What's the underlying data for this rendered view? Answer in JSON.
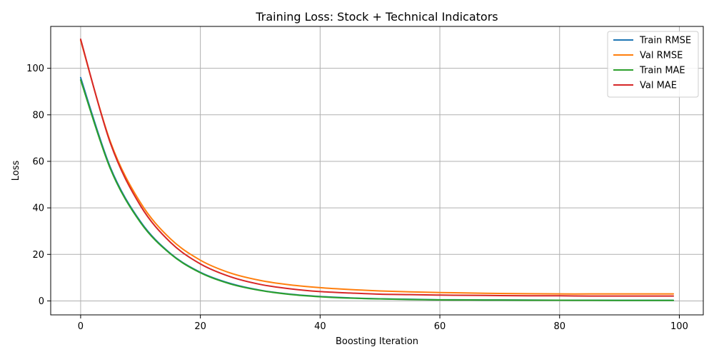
{
  "chart_data": {
    "type": "line",
    "title": "Training Loss: Stock + Technical Indicators",
    "xlabel": "Boosting Iteration",
    "ylabel": "Loss",
    "xlim": [
      -5,
      104
    ],
    "ylim": [
      -6,
      118
    ],
    "xticks": [
      0,
      20,
      40,
      60,
      80,
      100
    ],
    "yticks": [
      0,
      20,
      40,
      60,
      80,
      100
    ],
    "grid": true,
    "legend_position": "top-right",
    "x": [
      0,
      5,
      10,
      15,
      20,
      25,
      30,
      35,
      40,
      45,
      50,
      55,
      60,
      65,
      70,
      75,
      80,
      85,
      90,
      95,
      99
    ],
    "series": [
      {
        "name": "Train RMSE",
        "color": "#1f77b4",
        "values": [
          96.0,
          57.2,
          34.1,
          20.4,
          12.3,
          7.5,
          4.6,
          2.9,
          1.9,
          1.3,
          0.9,
          0.7,
          0.5,
          0.45,
          0.4,
          0.35,
          0.3,
          0.3,
          0.25,
          0.25,
          0.25
        ]
      },
      {
        "name": "Val RMSE",
        "color": "#ff7f0e",
        "values": [
          112.0,
          68.2,
          42.2,
          26.7,
          17.5,
          12.0,
          8.8,
          6.9,
          5.7,
          4.9,
          4.3,
          3.9,
          3.6,
          3.4,
          3.2,
          3.1,
          3.0,
          3.0,
          3.0,
          3.0,
          3.0
        ]
      },
      {
        "name": "Train MAE",
        "color": "#2ca02c",
        "values": [
          95.0,
          56.6,
          33.7,
          20.2,
          12.1,
          7.3,
          4.5,
          2.8,
          1.8,
          1.2,
          0.85,
          0.6,
          0.45,
          0.4,
          0.35,
          0.3,
          0.28,
          0.25,
          0.22,
          0.2,
          0.2
        ]
      },
      {
        "name": "Val MAE",
        "color": "#d62728",
        "values": [
          112.5,
          67.6,
          40.9,
          25.2,
          15.9,
          10.4,
          7.1,
          5.2,
          4.0,
          3.4,
          2.9,
          2.7,
          2.5,
          2.4,
          2.3,
          2.2,
          2.2,
          2.1,
          2.1,
          2.1,
          2.1
        ]
      }
    ]
  }
}
